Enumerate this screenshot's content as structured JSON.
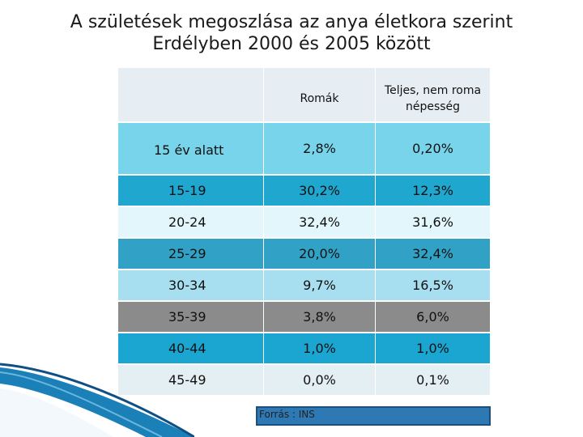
{
  "title": {
    "line1": "A születések megoszlása az anya életkora szerint",
    "line2": "Erdélyben 2000 és 2005 között"
  },
  "table": {
    "headers": [
      "",
      "Romák",
      "Teljes, nem roma népesség"
    ],
    "rows": [
      {
        "label": "15 év alatt",
        "roma": "2,8%",
        "nonroma": "0,20%"
      },
      {
        "label": "15-19",
        "roma": "30,2%",
        "nonroma": "12,3%"
      },
      {
        "label": "20-24",
        "roma": "32,4%",
        "nonroma": "31,6%"
      },
      {
        "label": "25-29",
        "roma": "20,0%",
        "nonroma": "32,4%"
      },
      {
        "label": "30-34",
        "roma": "9,7%",
        "nonroma": "16,5%"
      },
      {
        "label": "35-39",
        "roma": "3,8%",
        "nonroma": "6,0%"
      },
      {
        "label": "40-44",
        "roma": "1,0%",
        "nonroma": "1,0%"
      },
      {
        "label": "45-49",
        "roma": "0,0%",
        "nonroma": "0,1%"
      }
    ]
  },
  "source": "Forrás : INS"
}
